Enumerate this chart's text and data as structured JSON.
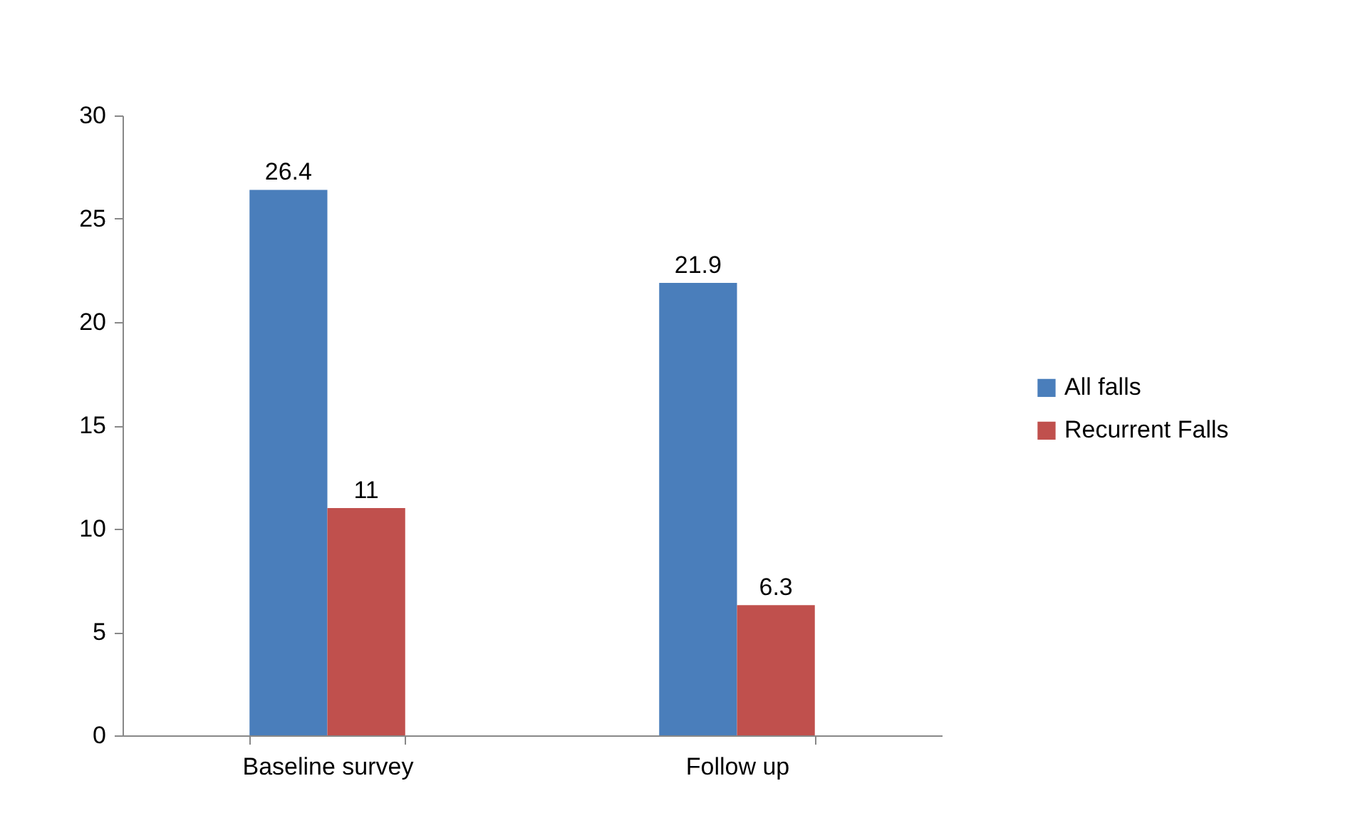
{
  "chart_data": {
    "type": "bar",
    "categories": [
      "Baseline survey",
      "Follow up"
    ],
    "series": [
      {
        "name": "All falls",
        "color": "#4a7ebb",
        "values": [
          26.4,
          21.9
        ]
      },
      {
        "name": "Recurrent Falls",
        "color": "#c0504d",
        "values": [
          11,
          6.3
        ]
      }
    ],
    "ylim": [
      0,
      30
    ],
    "yticks": [
      0,
      5,
      10,
      15,
      20,
      25,
      30
    ],
    "data_labels": true,
    "legend": "right"
  }
}
